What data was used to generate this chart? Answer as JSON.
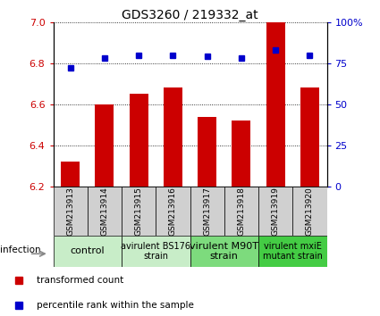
{
  "title": "GDS3260 / 219332_at",
  "samples": [
    "GSM213913",
    "GSM213914",
    "GSM213915",
    "GSM213916",
    "GSM213917",
    "GSM213918",
    "GSM213919",
    "GSM213920"
  ],
  "bar_values": [
    6.32,
    6.6,
    6.65,
    6.68,
    6.54,
    6.52,
    7.0,
    6.68
  ],
  "dot_values": [
    72,
    78,
    80,
    80,
    79,
    78,
    83,
    80
  ],
  "bar_color": "#cc0000",
  "dot_color": "#0000cc",
  "ylim_left": [
    6.2,
    7.0
  ],
  "ylim_right": [
    0,
    100
  ],
  "yticks_left": [
    6.2,
    6.4,
    6.6,
    6.8,
    7.0
  ],
  "yticks_right": [
    0,
    25,
    50,
    75,
    100
  ],
  "ytick_labels_right": [
    "0",
    "25",
    "50",
    "75",
    "100%"
  ],
  "groups": [
    {
      "label": "control",
      "indices": [
        0,
        1
      ],
      "color": "#c8edc8",
      "fontsize": 8
    },
    {
      "label": "avirulent BS176\nstrain",
      "indices": [
        2,
        3
      ],
      "color": "#c8edc8",
      "fontsize": 7
    },
    {
      "label": "virulent M90T\nstrain",
      "indices": [
        4,
        5
      ],
      "color": "#7ddb7d",
      "fontsize": 8
    },
    {
      "label": "virulent mxiE\nmutant strain",
      "indices": [
        6,
        7
      ],
      "color": "#44cc44",
      "fontsize": 7
    }
  ],
  "infection_label": "infection",
  "legend_items": [
    {
      "label": "transformed count",
      "color": "#cc0000"
    },
    {
      "label": "percentile rank within the sample",
      "color": "#0000cc"
    }
  ],
  "bar_width": 0.55,
  "grid_color": "black",
  "sample_box_color": "#d0d0d0",
  "sample_fontsize": 6.5
}
